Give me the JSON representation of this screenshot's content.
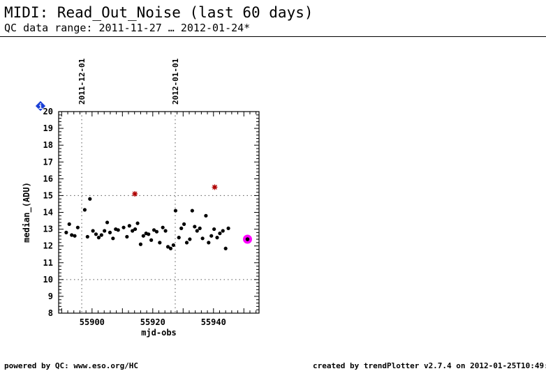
{
  "header": {
    "title": "MIDI: Read_Out_Noise (last 60 days)",
    "subtitle": "QC data range: 2011-11-27 … 2012-01-24*"
  },
  "footer": {
    "left": "powered by QC: www.eso.org/HC",
    "right": "created by trendPlotter v2.7.4 on 2012-01-25T10:49:47"
  },
  "colors": {
    "outlier": "#b00000",
    "latest": "#ff00ff",
    "info_badge": "#1a3fd6",
    "dotted": "#555555"
  },
  "chart_data": {
    "type": "scatter",
    "xlabel": "mjd-obs",
    "ylabel": "median_(ADU)",
    "xlim": [
      55889,
      55955
    ],
    "ylim": [
      8,
      20
    ],
    "xticks": [
      55900,
      55920,
      55940
    ],
    "yticks": [
      8,
      9,
      10,
      11,
      12,
      13,
      14,
      15,
      16,
      17,
      18,
      19,
      20
    ],
    "threshold_lines": [
      10,
      15
    ],
    "date_markers": [
      {
        "x": 55896.6,
        "label": "2011-12-01"
      },
      {
        "x": 55927.4,
        "label": "2012-01-01"
      }
    ],
    "info_badge_label": "i",
    "series": [
      {
        "name": "measurements",
        "points": [
          [
            55891.5,
            12.8
          ],
          [
            55892.5,
            13.3
          ],
          [
            55893.3,
            12.65
          ],
          [
            55894.3,
            12.6
          ],
          [
            55895.3,
            13.1
          ],
          [
            55897.6,
            14.15
          ],
          [
            55898.5,
            12.55
          ],
          [
            55899.3,
            14.8
          ],
          [
            55900.3,
            12.9
          ],
          [
            55901.3,
            12.7
          ],
          [
            55902.2,
            12.5
          ],
          [
            55903.1,
            12.65
          ],
          [
            55904.1,
            12.9
          ],
          [
            55905.0,
            13.4
          ],
          [
            55905.9,
            12.8
          ],
          [
            55906.9,
            12.45
          ],
          [
            55907.8,
            13.0
          ],
          [
            55908.6,
            12.95
          ],
          [
            55910.4,
            13.1
          ],
          [
            55911.5,
            12.55
          ],
          [
            55912.3,
            13.2
          ],
          [
            55913.3,
            12.9
          ],
          [
            55914.2,
            13.0
          ],
          [
            55915.0,
            13.35
          ],
          [
            55916.0,
            12.1
          ],
          [
            55916.9,
            12.6
          ],
          [
            55917.8,
            12.75
          ],
          [
            55918.6,
            12.7
          ],
          [
            55919.5,
            12.35
          ],
          [
            55920.4,
            12.95
          ],
          [
            55921.3,
            12.85
          ],
          [
            55922.3,
            12.2
          ],
          [
            55923.3,
            13.1
          ],
          [
            55924.2,
            12.9
          ],
          [
            55925.0,
            11.95
          ],
          [
            55925.9,
            11.85
          ],
          [
            55926.8,
            12.05
          ],
          [
            55927.5,
            14.1
          ],
          [
            55928.6,
            12.5
          ],
          [
            55929.4,
            13.05
          ],
          [
            55930.3,
            13.3
          ],
          [
            55931.2,
            12.2
          ],
          [
            55932.2,
            12.4
          ],
          [
            55933.0,
            14.1
          ],
          [
            55933.8,
            13.15
          ],
          [
            55934.6,
            12.9
          ],
          [
            55935.5,
            13.05
          ],
          [
            55936.4,
            12.45
          ],
          [
            55937.5,
            13.8
          ],
          [
            55938.4,
            12.2
          ],
          [
            55939.3,
            12.6
          ],
          [
            55940.2,
            13.0
          ],
          [
            55941.2,
            12.5
          ],
          [
            55942.1,
            12.75
          ],
          [
            55943.1,
            12.9
          ],
          [
            55944.0,
            11.85
          ],
          [
            55944.9,
            13.05
          ]
        ]
      },
      {
        "name": "outliers",
        "points": [
          [
            55914.1,
            15.1
          ],
          [
            55940.4,
            15.5
          ]
        ]
      },
      {
        "name": "latest",
        "points": [
          [
            55951.2,
            12.4
          ]
        ]
      }
    ]
  }
}
